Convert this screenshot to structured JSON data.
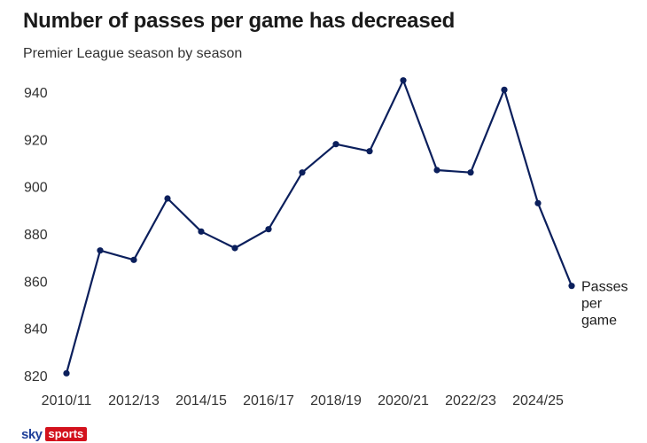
{
  "chart_data": {
    "type": "line",
    "title": "Number of passes per game has decreased",
    "subtitle": "Premier League season by season",
    "xlabel": "",
    "ylabel": "",
    "ylim": [
      820,
      945
    ],
    "yticks": [
      "940",
      "920",
      "900",
      "880",
      "860",
      "840",
      "820"
    ],
    "ytick_values": [
      940,
      920,
      900,
      880,
      860,
      840,
      820
    ],
    "x": [
      "2010/11",
      "2011/12",
      "2012/13",
      "2013/14",
      "2014/15",
      "2015/16",
      "2016/17",
      "2017/18",
      "2018/19",
      "2019/20",
      "2020/21",
      "2021/22",
      "2022/23",
      "2023/24",
      "2024/25",
      "2025/26"
    ],
    "xtick_labels": [
      "2010/11",
      "2012/13",
      "2014/15",
      "2016/17",
      "2018/19",
      "2020/21",
      "2022/23",
      "2024/25"
    ],
    "series": [
      {
        "name": "Passes per game",
        "color": "#0b1f5c",
        "values": [
          821,
          873,
          869,
          895,
          881,
          874,
          882,
          906,
          918,
          915,
          945,
          907,
          906,
          941,
          893,
          858
        ]
      }
    ],
    "annotation": [
      "Passes",
      "per",
      "game"
    ],
    "grid": false
  },
  "branding": {
    "sky": "sky",
    "sports": "sports"
  }
}
